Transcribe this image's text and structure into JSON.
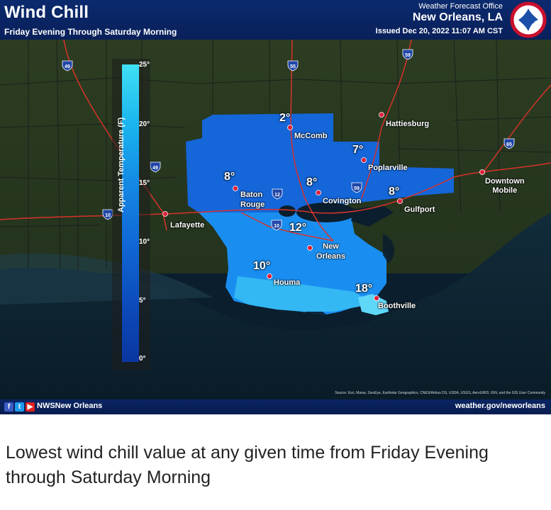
{
  "header": {
    "title": "Wind Chill",
    "subtitle": "Friday Evening Through Saturday Morning",
    "office_label": "Weather Forecast Office",
    "office_name": "New Orleans, LA",
    "issued": "Issued Dec 20, 2022 11:07 AM CST",
    "logo_text": "NATIONAL WEATHER SERVICE"
  },
  "legend": {
    "title": "Apparent Temperature (F)",
    "ticks": [
      "25°",
      "20°",
      "15°",
      "10°",
      "5°",
      "0°"
    ],
    "colors": [
      "#3fe0f5",
      "#1aa6ee",
      "#1478e0",
      "#0d58c8",
      "#0a3fa8"
    ]
  },
  "cities": {
    "mccomb": "McComb",
    "hattiesburg": "Hattiesburg",
    "poplarville": "Poplarville",
    "baton_rouge": "Baton\nRouge",
    "covington": "Covington",
    "gulfport": "Gulfport",
    "downtown_mobile": "Downtown\nMobile",
    "lafayette": "Lafayette",
    "new_orleans": "New\nOrleans",
    "houma": "Houma",
    "boothville": "Boothville"
  },
  "values": {
    "mccomb": "2°",
    "poplarville": "7°",
    "baton_rouge": "8°",
    "covington": "8°",
    "gulfport": "8°",
    "new_orleans": "12°",
    "houma": "10°",
    "boothville": "18°"
  },
  "shields": [
    "49",
    "55",
    "59",
    "65",
    "49",
    "12",
    "59",
    "10",
    "10"
  ],
  "footer": {
    "social_icons": [
      "facebook-icon",
      "twitter-icon",
      "youtube-icon"
    ],
    "handle": "NWSNew Orleans",
    "website": "weather.gov/neworleans",
    "source": "Source: Esri, Maxar, GeoEye, Earthstar Geographics, CNES/Airbus DS, USDA, USGS, AeroGRID, IGN, and the GIS User Community"
  },
  "caption": "Lowest wind chill value at any given time from Friday Evening through Saturday Morning"
}
